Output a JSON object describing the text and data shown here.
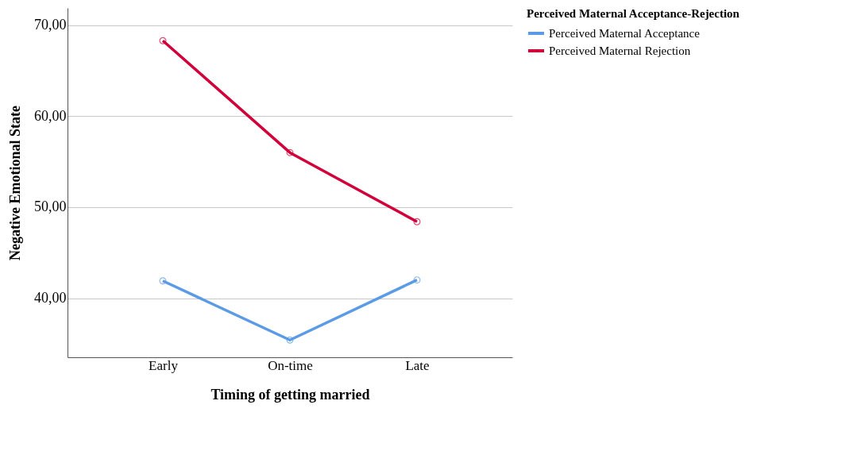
{
  "chart_data": {
    "type": "line",
    "xlabel": "Timing of getting married",
    "ylabel": "Negative Emotional State",
    "legend_title": "Perceived Maternal Acceptance-Rejection",
    "categories": [
      "Early",
      "On-time",
      "Late"
    ],
    "series": [
      {
        "name": "Perceived Maternal Acceptance",
        "color": "#5b9be6",
        "values": [
          41.9,
          35.4,
          42.0
        ]
      },
      {
        "name": "Perceived Maternal Rejection",
        "color": "#d1003a",
        "values": [
          68.3,
          56.0,
          48.4
        ]
      }
    ],
    "ylim": [
      33.5,
      71.9
    ],
    "yticks": [
      {
        "value": 40,
        "label": "40,00"
      },
      {
        "value": 50,
        "label": "50,00"
      },
      {
        "value": 60,
        "label": "60,00"
      },
      {
        "value": 70,
        "label": "70,00"
      }
    ],
    "grid": "y",
    "legend": "top right",
    "marker": "circle",
    "line_style": "solid"
  }
}
